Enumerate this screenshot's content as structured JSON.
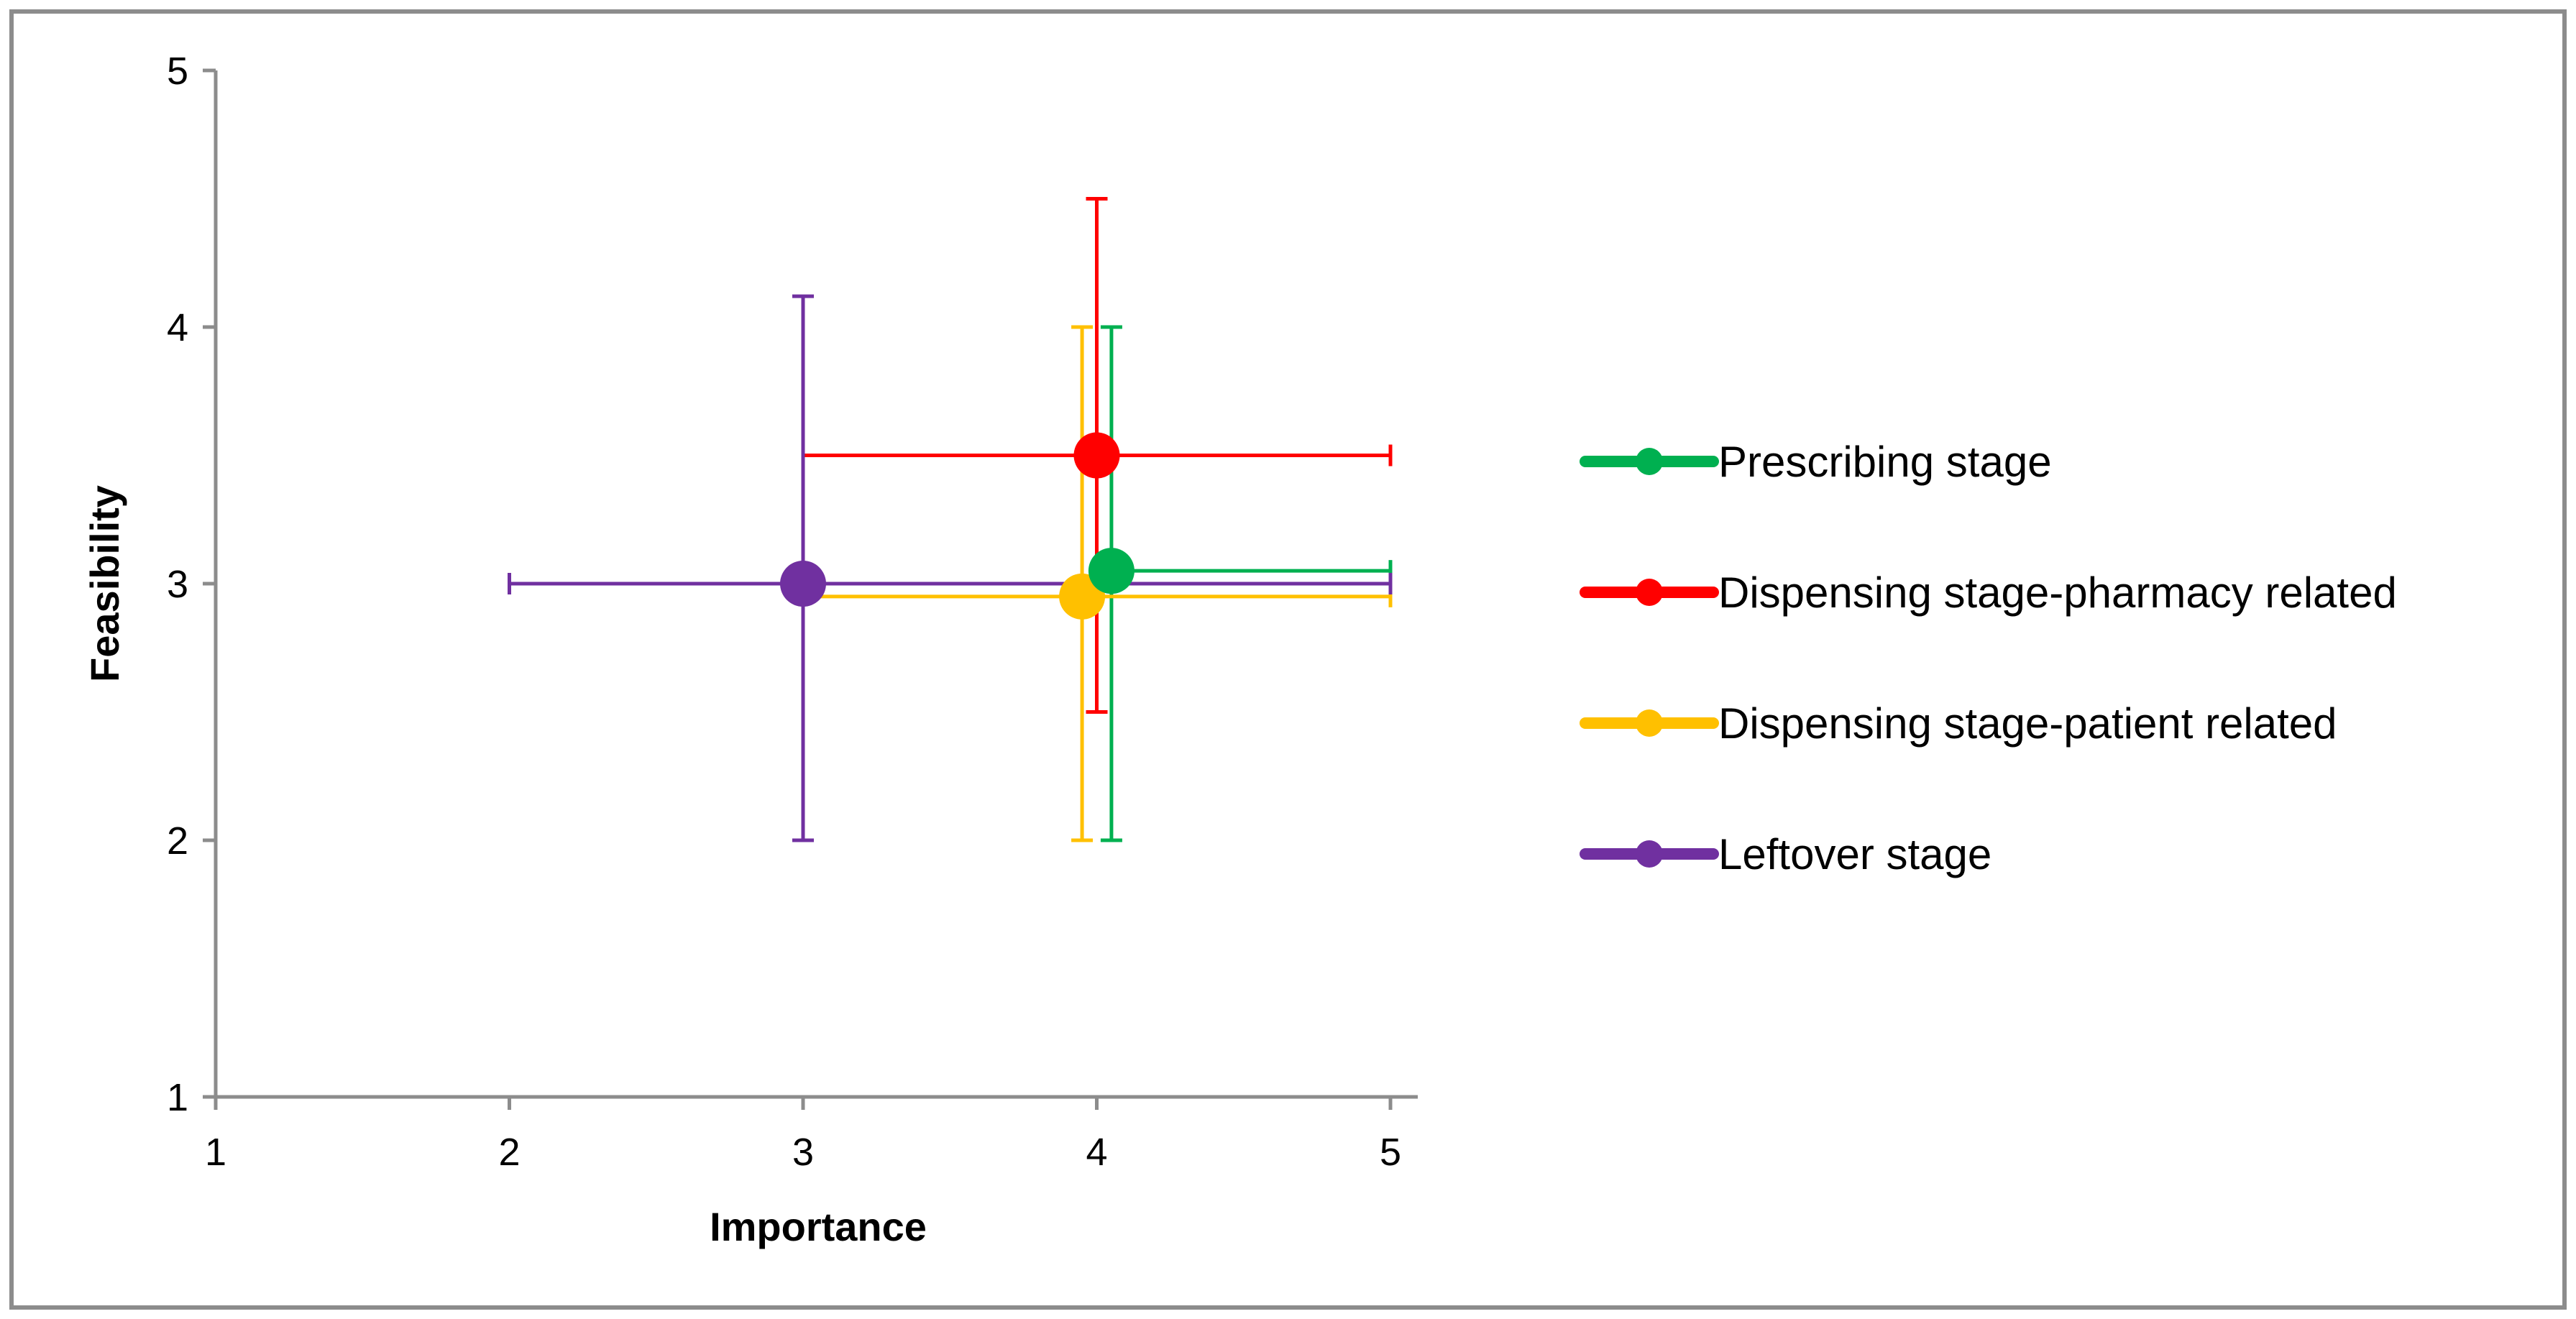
{
  "chart_data": {
    "type": "scatter",
    "title": "",
    "xlabel": "Importance",
    "ylabel": "Feasibility",
    "xlim": [
      1,
      5
    ],
    "ylim": [
      1,
      5
    ],
    "xticks": [
      "1",
      "2",
      "3",
      "4",
      "5"
    ],
    "yticks": [
      "1",
      "2",
      "3",
      "4",
      "5"
    ],
    "grid": false,
    "legend_position": "right",
    "series": [
      {
        "name": "Prescribing stage",
        "color": "#00B050",
        "x": 4.05,
        "y": 3.05,
        "x_err": [
          4.05,
          5
        ],
        "y_err": [
          2,
          4
        ]
      },
      {
        "name": "Dispensing stage-pharmacy related",
        "color": "#FF0000",
        "x": 4,
        "y": 3.5,
        "x_err": [
          3,
          5
        ],
        "y_err": [
          2.5,
          4.5
        ]
      },
      {
        "name": "Dispensing stage-patient related",
        "color": "#FFC000",
        "x": 3.95,
        "y": 2.95,
        "x_err": [
          3,
          5
        ],
        "y_err": [
          2,
          4
        ]
      },
      {
        "name": "Leftover stage",
        "color": "#7030A0",
        "x": 3,
        "y": 3,
        "x_err": [
          2,
          5
        ],
        "y_err": [
          2,
          4.12
        ]
      }
    ]
  }
}
